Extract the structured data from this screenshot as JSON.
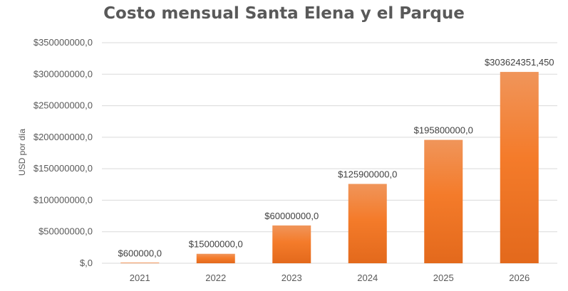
{
  "chart_data": {
    "type": "bar",
    "title": "Costo mensual Santa Elena y el Parque",
    "xlabel": "",
    "ylabel": "USD por día",
    "categories": [
      "2021",
      "2022",
      "2023",
      "2024",
      "2025",
      "2026"
    ],
    "values": [
      600000,
      15000000,
      60000000,
      125900000,
      195800000,
      303624351.45
    ],
    "data_labels": [
      "$600000,0",
      "$15000000,0",
      "$60000000,0",
      "$125900000,0",
      "$195800000,0",
      "$303624351,450"
    ],
    "ylim": [
      0,
      350000000
    ],
    "yticks": [
      0,
      50000000,
      100000000,
      150000000,
      200000000,
      250000000,
      300000000,
      350000000
    ],
    "ytick_labels": [
      "$,0",
      "$50000000,0",
      "$100000000,0",
      "$150000000,0",
      "$200000000,0",
      "$250000000,0",
      "$300000000,0",
      "$350000000,0"
    ],
    "grid": true,
    "legend": "none",
    "colors": {
      "bar_top": "#F0955A",
      "bar_mid": "#F47B2A",
      "bar_bottom": "#E3691C",
      "grid": "#D9D9D9",
      "text": "#595959"
    }
  }
}
